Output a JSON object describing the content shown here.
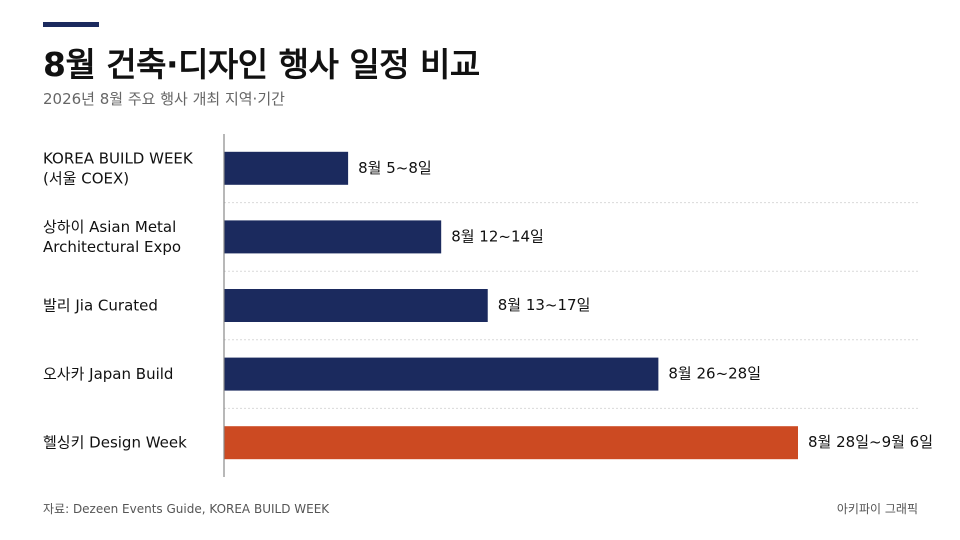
{
  "header": {
    "title": "8월 건축·디자인 행사 일정 비교",
    "subtitle": "2026년 8월 주요 행사 개최 지역·기간"
  },
  "footer": {
    "source": "자료: Dezeen Events Guide, KOREA BUILD WEEK",
    "brand": "아키파이 그래픽"
  },
  "colors": {
    "bar": "#1b2a5e",
    "highlight": "#cc4a22",
    "accent": "#1b2a5e"
  },
  "chart_data": {
    "type": "bar",
    "orientation": "horizontal",
    "title": "8월 건축·디자인 행사 일정 비교",
    "subtitle": "2026년 8월 주요 행사 개최 지역·기간",
    "xlabel": "",
    "ylabel": "",
    "categories": [
      [
        "KOREA BUILD WEEK",
        "(서울 COEX)"
      ],
      [
        "상하이 Asian Metal",
        "Architectural Expo"
      ],
      [
        "발리 Jia Curated"
      ],
      [
        "오사카 Japan Build"
      ],
      [
        "헬싱키 Design Week"
      ]
    ],
    "values": [
      8,
      14,
      17,
      28,
      37
    ],
    "start_values": [
      5,
      12,
      13,
      26,
      28
    ],
    "data_labels": [
      "8월 5~8일",
      "8월 12~14일",
      "8월 13~17일",
      "8월 26~28일",
      "8월 28일~9월 6일"
    ],
    "highlight_index": 4,
    "xlim": [
      0,
      37
    ],
    "grid": false,
    "legend": "none"
  }
}
